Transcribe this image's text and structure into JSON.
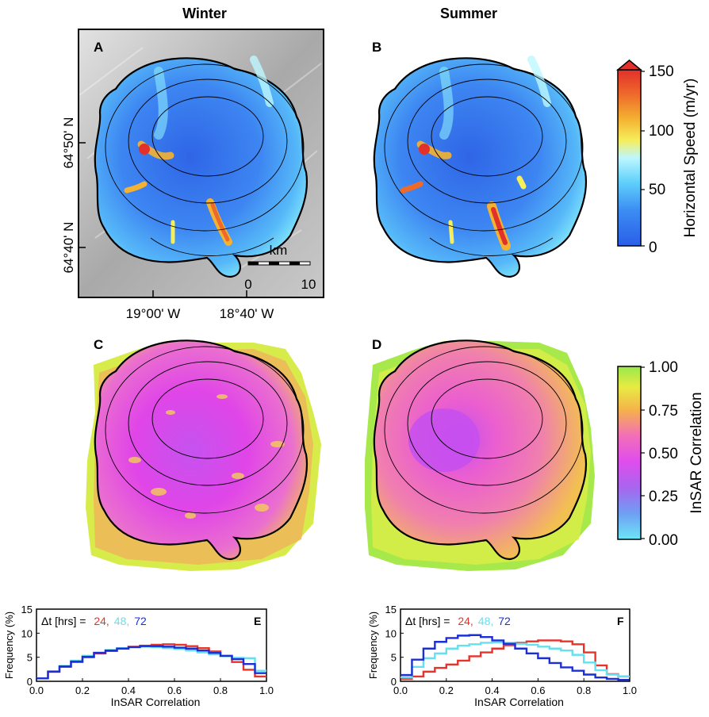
{
  "columns": {
    "left": "Winter",
    "right": "Summer"
  },
  "panels": {
    "A": "A",
    "B": "B",
    "C": "C",
    "D": "D",
    "E": "E",
    "F": "F"
  },
  "map_axes": {
    "lat_ticks": [
      "64°50' N",
      "64°40' N"
    ],
    "lon_ticks": [
      "19°00' W",
      "18°40' W"
    ]
  },
  "scale_bar": {
    "unit": "km",
    "start": "0",
    "end": "10"
  },
  "colorbars": {
    "speed": {
      "label": "Horizontal Speed (m/yr)",
      "ticks": [
        "150",
        "100",
        "50",
        "0"
      ],
      "range": [
        0,
        150
      ]
    },
    "correlation": {
      "label": "InSAR Correlation",
      "ticks": [
        "1.00",
        "0.75",
        "0.50",
        "0.25",
        "0.00"
      ],
      "range": [
        0,
        1
      ]
    }
  },
  "colors": {
    "dt24": "#e8332a",
    "dt48": "#66e0f0",
    "dt72": "#1c2fd6",
    "ice_blue": "#2f6fe8",
    "correlation_magenta": "#e040e8",
    "correlation_green": "#a6e84a"
  },
  "chart_data": [
    {
      "panel": "E",
      "type": "line",
      "drawstyle": "step",
      "xlabel": "InSAR Correlation",
      "ylabel": "Frequency (%)",
      "xlim": [
        0,
        1
      ],
      "ylim": [
        0,
        15
      ],
      "xticks": [
        "0.0",
        "0.2",
        "0.4",
        "0.6",
        "0.8",
        "1.0"
      ],
      "yticks": [
        "0",
        "5",
        "10",
        "15"
      ],
      "legend_prefix": "Δt [hrs] =",
      "x": [
        0.0,
        0.05,
        0.1,
        0.15,
        0.2,
        0.25,
        0.3,
        0.35,
        0.4,
        0.45,
        0.5,
        0.55,
        0.6,
        0.65,
        0.7,
        0.75,
        0.8,
        0.85,
        0.9,
        0.95
      ],
      "series": [
        {
          "name": "24,",
          "color": "#e8332a",
          "values": [
            0.6,
            2.0,
            3.0,
            4.0,
            5.0,
            5.8,
            6.3,
            6.9,
            7.2,
            7.4,
            7.6,
            7.7,
            7.6,
            7.3,
            6.9,
            6.2,
            5.2,
            4.0,
            2.4,
            1.0
          ]
        },
        {
          "name": "48,",
          "color": "#66e0f0",
          "values": [
            0.6,
            2.1,
            3.2,
            4.3,
            5.3,
            6.0,
            6.5,
            6.9,
            7.1,
            7.2,
            7.1,
            6.9,
            6.7,
            6.4,
            6.0,
            5.6,
            5.2,
            4.9,
            4.8,
            2.2
          ]
        },
        {
          "name": "72",
          "color": "#1c2fd6",
          "values": [
            0.6,
            2.0,
            3.1,
            4.1,
            5.1,
            5.9,
            6.4,
            6.8,
            7.1,
            7.3,
            7.3,
            7.2,
            7.0,
            6.8,
            6.4,
            5.9,
            5.3,
            4.6,
            3.6,
            1.7
          ]
        }
      ]
    },
    {
      "panel": "F",
      "type": "line",
      "drawstyle": "step",
      "xlabel": "InSAR Correlation",
      "ylabel": "Frequency (%)",
      "xlim": [
        0,
        1
      ],
      "ylim": [
        0,
        15
      ],
      "xticks": [
        "0.0",
        "0.2",
        "0.4",
        "0.6",
        "0.8",
        "1.0"
      ],
      "yticks": [
        "0",
        "5",
        "10",
        "15"
      ],
      "legend_prefix": "Δt [hrs] =",
      "x": [
        0.0,
        0.05,
        0.1,
        0.15,
        0.2,
        0.25,
        0.3,
        0.35,
        0.4,
        0.45,
        0.5,
        0.55,
        0.6,
        0.65,
        0.7,
        0.75,
        0.8,
        0.85,
        0.9,
        0.95
      ],
      "series": [
        {
          "name": "24,",
          "color": "#e8332a",
          "values": [
            0.5,
            1.0,
            2.0,
            2.8,
            3.5,
            4.3,
            5.2,
            6.0,
            6.8,
            7.5,
            8.0,
            8.3,
            8.5,
            8.5,
            8.3,
            7.7,
            6.0,
            3.3,
            1.5,
            1.0
          ]
        },
        {
          "name": "48,",
          "color": "#66e0f0",
          "values": [
            0.8,
            3.0,
            4.8,
            5.8,
            6.8,
            7.4,
            7.7,
            8.0,
            8.1,
            8.0,
            7.8,
            7.6,
            7.2,
            6.8,
            6.4,
            5.5,
            3.9,
            2.3,
            1.4,
            1.0
          ]
        },
        {
          "name": "72",
          "color": "#1c2fd6",
          "values": [
            1.3,
            4.5,
            6.8,
            8.2,
            9.0,
            9.5,
            9.6,
            9.2,
            8.5,
            7.8,
            6.8,
            5.8,
            4.8,
            3.8,
            2.9,
            2.2,
            1.4,
            0.8,
            0.5,
            0.3
          ]
        }
      ]
    }
  ]
}
